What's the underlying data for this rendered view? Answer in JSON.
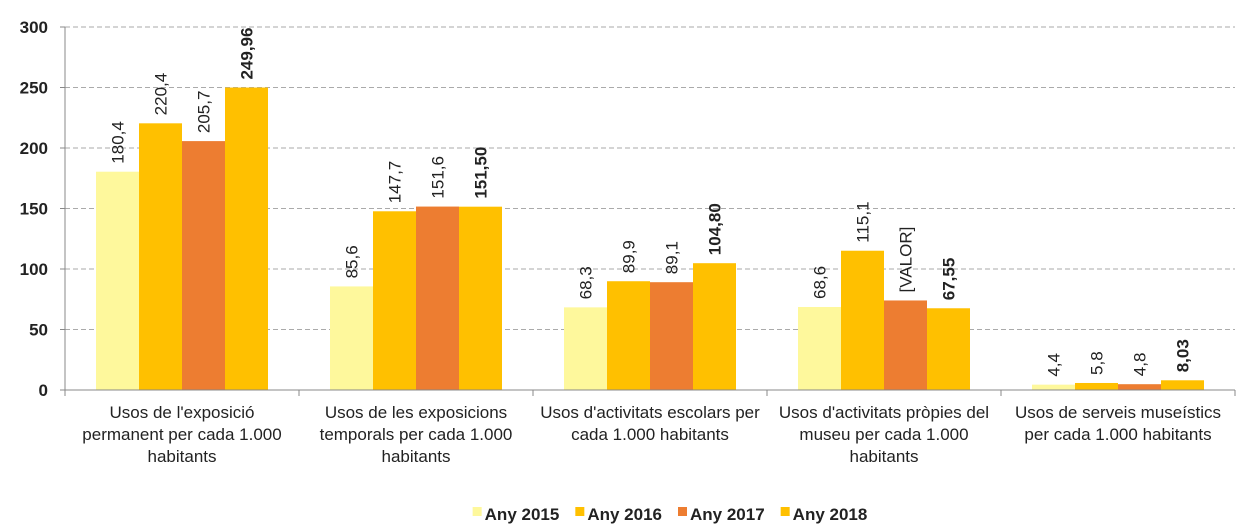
{
  "chart_data": {
    "type": "bar",
    "categories": [
      "Usos de l'exposició permanent per cada 1.000 habitants",
      "Usos de les exposicions temporals per cada 1.000 habitants",
      "Usos d'activitats escolars per cada 1.000 habitants",
      "Usos d'activitats pròpies del museu per cada 1.000 habitants",
      "Usos de serveis museístics per cada 1.000 habitants"
    ],
    "series": [
      {
        "name": "Any 2015",
        "color": "#fef89c",
        "values": [
          180.4,
          85.6,
          68.3,
          68.6,
          4.4
        ],
        "value_labels": [
          "180,4",
          "85,6",
          "68,3",
          "68,6",
          "4,4"
        ]
      },
      {
        "name": "Any 2016",
        "color": "#ffc000",
        "values": [
          220.4,
          147.7,
          89.9,
          115.1,
          5.8
        ],
        "value_labels": [
          "220,4",
          "147,7",
          "89,9",
          "115,1",
          "5,8"
        ]
      },
      {
        "name": "Any 2017",
        "color": "#ed7d31",
        "values": [
          205.7,
          151.6,
          89.1,
          74,
          4.8
        ],
        "value_labels": [
          "205,7",
          "151,6",
          "89,1",
          "[VALOR]",
          "4,8"
        ]
      },
      {
        "name": "Any 2018",
        "color": "#ffc000",
        "values": [
          249.96,
          151.5,
          104.8,
          67.55,
          8.03
        ],
        "value_labels": [
          "249,96",
          "151,50",
          "104,80",
          "67,55",
          "8,03"
        ],
        "label_weight": "bold"
      }
    ],
    "ylim": [
      0,
      300
    ],
    "yticks": [
      0,
      50,
      100,
      150,
      200,
      250,
      300
    ],
    "grid": true,
    "legend": "bottom"
  }
}
